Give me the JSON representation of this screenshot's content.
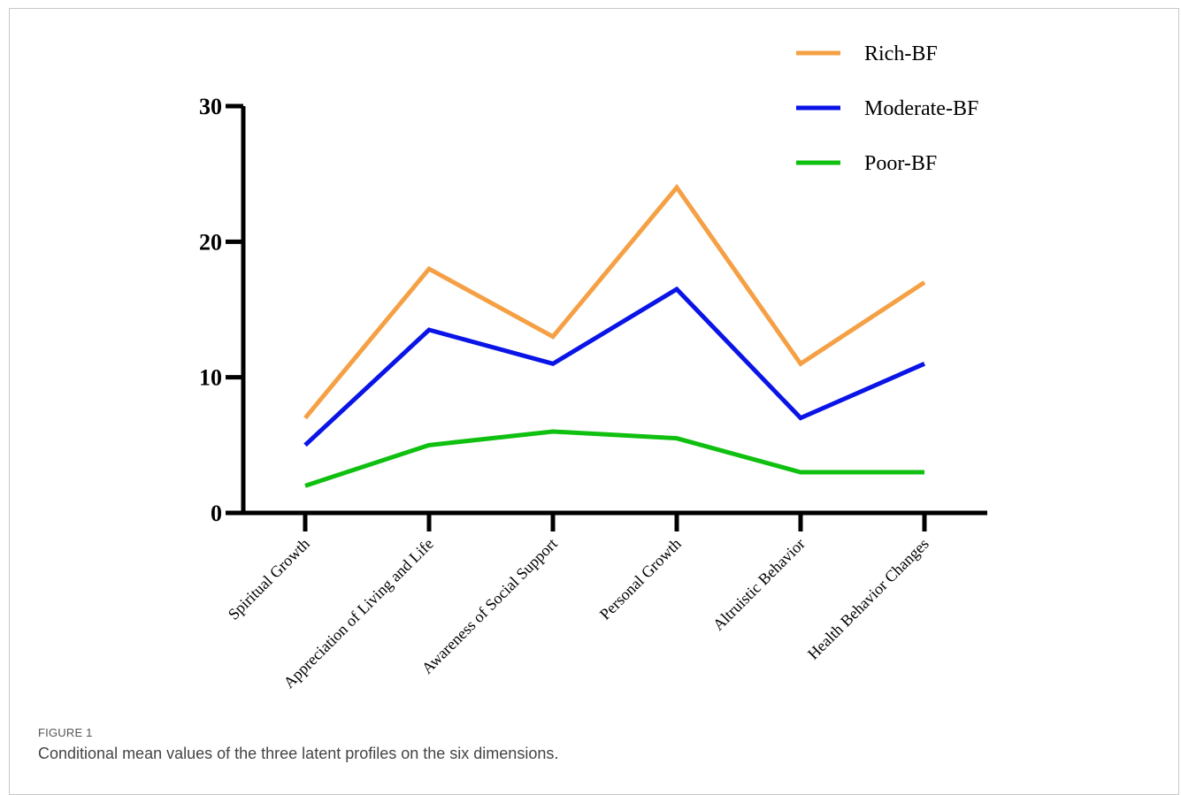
{
  "figure": {
    "label": "FIGURE 1",
    "caption": "Conditional mean values of the three latent profiles on the six dimensions."
  },
  "chart_data": {
    "type": "line",
    "categories": [
      "Spiritual Growth",
      "Appreciation of Living and Life",
      "Awareness of Social Support",
      "Personal Growth",
      "Altruistic Behavior",
      "Health Behavior Changes"
    ],
    "series": [
      {
        "name": "Rich-BF",
        "color": "#f5a044",
        "values": [
          7,
          18,
          13,
          24,
          11,
          17
        ]
      },
      {
        "name": "Moderate-BF",
        "color": "#0a14e6",
        "values": [
          5,
          13.5,
          11,
          16.5,
          7,
          11
        ]
      },
      {
        "name": "Poor-BF",
        "color": "#10c010",
        "values": [
          2,
          5,
          6,
          5.5,
          3,
          3
        ]
      }
    ],
    "ylim": [
      0,
      30
    ],
    "yticks": [
      "0",
      "10",
      "20",
      "30"
    ],
    "title": "",
    "xlabel": "",
    "ylabel": "",
    "grid": false,
    "legend_position": "top-right"
  }
}
